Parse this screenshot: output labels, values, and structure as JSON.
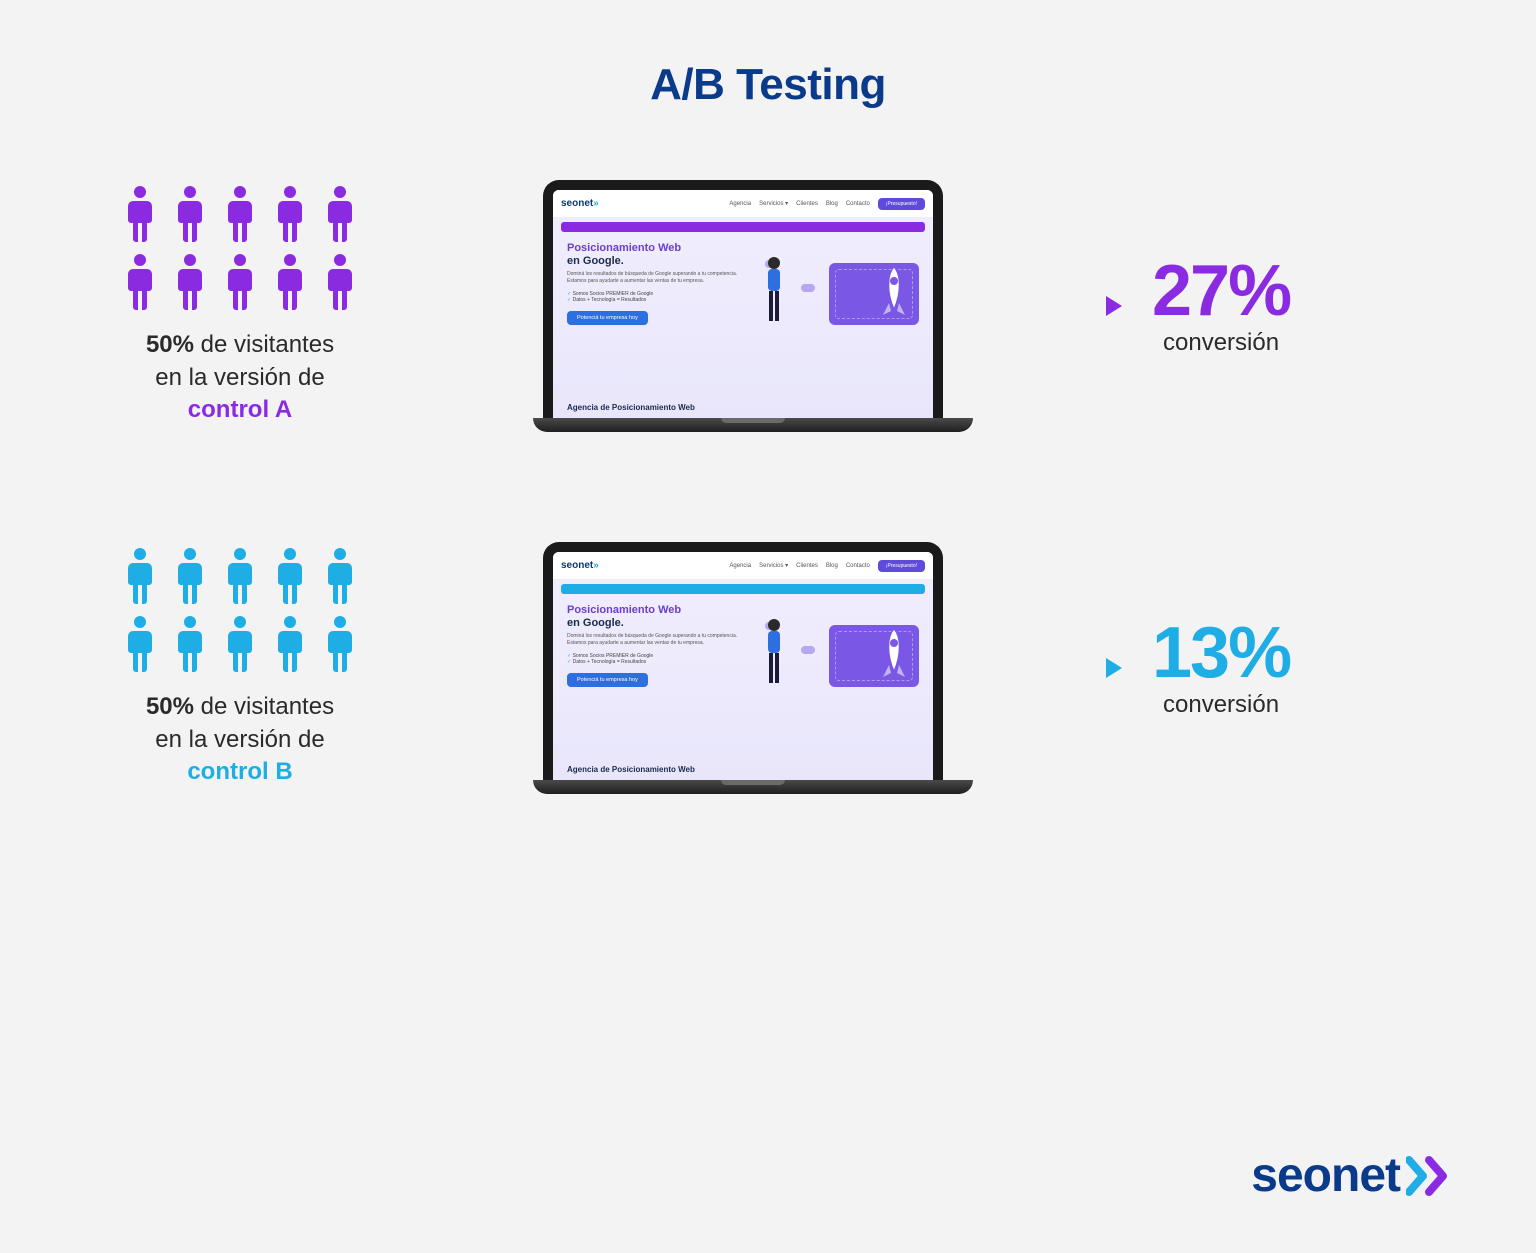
{
  "title": "A/B Testing",
  "title_color": "#0a3a8a",
  "background_color": "#f3f3f3",
  "people_icon": {
    "rows": 2,
    "cols": 5,
    "width": 34,
    "height": 58
  },
  "variants": [
    {
      "id": "A",
      "color": "#8a2be2",
      "visitors_percent": "50%",
      "visitors_line1": "de visitantes",
      "visitors_line2": "en la versión de",
      "control_label": "control A",
      "laptop_accent_color": "#8a2be2",
      "result_percent": "27%",
      "result_label": "conversión"
    },
    {
      "id": "B",
      "color": "#1eaee5",
      "visitors_percent": "50%",
      "visitors_line1": "de visitantes",
      "visitors_line2": "en la versión de",
      "control_label": "control B",
      "laptop_accent_color": "#1eaee5",
      "result_percent": "13%",
      "result_label": "conversión"
    }
  ],
  "mock_site": {
    "logo_text": "seonet",
    "nav_items": [
      "Agencia",
      "Servicios ▾",
      "Clientes",
      "Blog",
      "Contacto"
    ],
    "nav_cta": "¡Presupuesto!",
    "hero_title_1": "Posicionamiento Web",
    "hero_title_2": "en Google.",
    "hero_desc": "Dominá los resultados de búsqueda de Google superando a tu competencia. Estamos para ayudarte a aumentar las ventas de tu empresa.",
    "hero_check_1": "Somos Socios PREMIER de Google",
    "hero_check_2": "Datos + Tecnología = Resultados",
    "hero_button": "Potenciá tu empresa hoy",
    "footer_heading": "Agencia de Posicionamiento Web"
  },
  "brand": {
    "name": "seonet",
    "text_color": "#0a3a8a",
    "chevron_colors": [
      "#1eaee5",
      "#8a2be2"
    ]
  }
}
